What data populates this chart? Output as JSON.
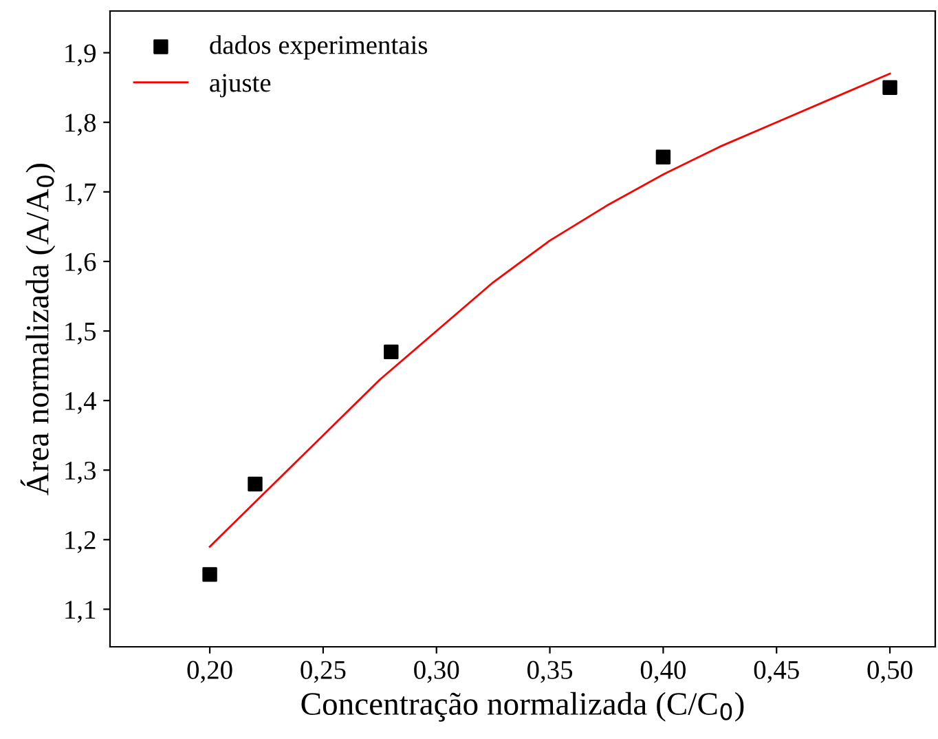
{
  "chart_data": {
    "type": "scatter",
    "xlabel": "Concentração normalizada (C/C$_{0}$)",
    "ylabel": "Área normalizada (A/A$_{0}$)",
    "xlim": [
      0.156,
      0.52
    ],
    "ylim": [
      1.046,
      1.96
    ],
    "xticks": [
      {
        "value": 0.2,
        "label": "0,20"
      },
      {
        "value": 0.25,
        "label": "0,25"
      },
      {
        "value": 0.3,
        "label": "0,30"
      },
      {
        "value": 0.35,
        "label": "0,35"
      },
      {
        "value": 0.4,
        "label": "0,40"
      },
      {
        "value": 0.45,
        "label": "0,45"
      },
      {
        "value": 0.5,
        "label": "0,50"
      }
    ],
    "yticks": [
      {
        "value": 1.1,
        "label": "1,1"
      },
      {
        "value": 1.2,
        "label": "1,2"
      },
      {
        "value": 1.3,
        "label": "1,3"
      },
      {
        "value": 1.4,
        "label": "1,4"
      },
      {
        "value": 1.5,
        "label": "1,5"
      },
      {
        "value": 1.6,
        "label": "1,6"
      },
      {
        "value": 1.7,
        "label": "1,7"
      },
      {
        "value": 1.8,
        "label": "1,8"
      },
      {
        "value": 1.9,
        "label": "1,9"
      }
    ],
    "grid": false,
    "legend": "top left",
    "series": [
      {
        "name": "dados experimentais",
        "marker": "square",
        "color": "#000000",
        "x": [
          0.2,
          0.22,
          0.28,
          0.4,
          0.5
        ],
        "values": [
          1.15,
          1.28,
          1.47,
          1.75,
          1.85
        ]
      },
      {
        "name": "ajuste",
        "type": "line",
        "marker": "none",
        "line_style": "solid",
        "color": "#ff0000",
        "x": [
          0.2,
          0.225,
          0.25,
          0.275,
          0.3,
          0.325,
          0.35,
          0.375,
          0.4,
          0.425,
          0.45,
          0.475,
          0.5
        ],
        "values": [
          1.19,
          1.27,
          1.35,
          1.43,
          1.5,
          1.57,
          1.63,
          1.68,
          1.725,
          1.765,
          1.8,
          1.835,
          1.87
        ]
      }
    ]
  }
}
